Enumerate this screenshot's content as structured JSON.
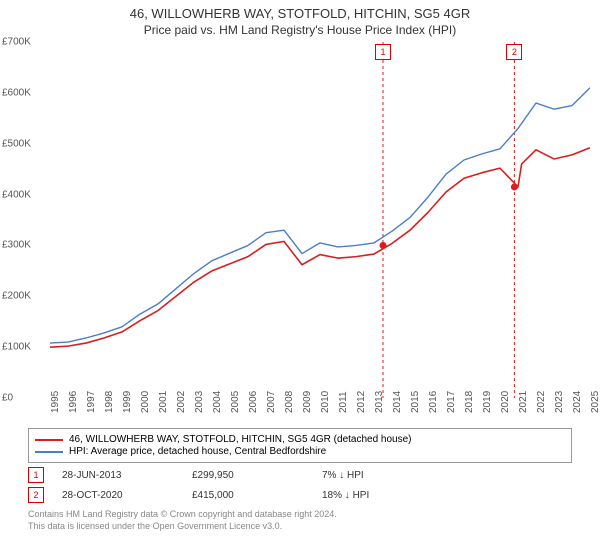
{
  "title": "46, WILLOWHERB WAY, STOTFOLD, HITCHIN, SG5 4GR",
  "subtitle": "Price paid vs. HM Land Registry's House Price Index (HPI)",
  "chart": {
    "type": "line",
    "ylabel_prefix": "£",
    "ylabel_suffix": "K",
    "ylim": [
      0,
      700
    ],
    "ytick_step": 100,
    "yticks": [
      "£0",
      "£100K",
      "£200K",
      "£300K",
      "£400K",
      "£500K",
      "£600K",
      "£700K"
    ],
    "xlim": [
      1995,
      2025
    ],
    "xticks": [
      "1995",
      "1996",
      "1997",
      "1998",
      "1999",
      "2000",
      "2001",
      "2002",
      "2003",
      "2004",
      "2005",
      "2006",
      "2007",
      "2008",
      "2009",
      "2010",
      "2011",
      "2012",
      "2013",
      "2014",
      "2015",
      "2016",
      "2017",
      "2018",
      "2019",
      "2020",
      "2021",
      "2022",
      "2023",
      "2024",
      "2025"
    ],
    "background_color": "#ffffff",
    "grid": false,
    "series": [
      {
        "name": "hpi",
        "label": "HPI: Average price, detached house, Central Bedfordshire",
        "color": "#4a7ec8",
        "width": 1.4,
        "points": [
          [
            1995,
            108
          ],
          [
            1996,
            110
          ],
          [
            1997,
            118
          ],
          [
            1998,
            128
          ],
          [
            1999,
            140
          ],
          [
            2000,
            165
          ],
          [
            2001,
            185
          ],
          [
            2002,
            215
          ],
          [
            2003,
            245
          ],
          [
            2004,
            270
          ],
          [
            2005,
            285
          ],
          [
            2006,
            300
          ],
          [
            2007,
            325
          ],
          [
            2008,
            330
          ],
          [
            2009,
            284
          ],
          [
            2010,
            305
          ],
          [
            2011,
            297
          ],
          [
            2012,
            300
          ],
          [
            2013,
            305
          ],
          [
            2014,
            328
          ],
          [
            2015,
            355
          ],
          [
            2016,
            395
          ],
          [
            2017,
            440
          ],
          [
            2018,
            468
          ],
          [
            2019,
            480
          ],
          [
            2020,
            490
          ],
          [
            2021,
            530
          ],
          [
            2022,
            580
          ],
          [
            2023,
            568
          ],
          [
            2024,
            575
          ],
          [
            2025,
            610
          ]
        ]
      },
      {
        "name": "price",
        "label": "46, WILLOWHERB WAY, STOTFOLD, HITCHIN, SG5 4GR (detached house)",
        "color": "#d81e1e",
        "width": 1.6,
        "points": [
          [
            1995,
            100
          ],
          [
            1996,
            102
          ],
          [
            1997,
            108
          ],
          [
            1998,
            118
          ],
          [
            1999,
            130
          ],
          [
            2000,
            152
          ],
          [
            2001,
            172
          ],
          [
            2002,
            200
          ],
          [
            2003,
            228
          ],
          [
            2004,
            250
          ],
          [
            2005,
            264
          ],
          [
            2006,
            278
          ],
          [
            2007,
            302
          ],
          [
            2008,
            308
          ],
          [
            2009,
            262
          ],
          [
            2010,
            282
          ],
          [
            2011,
            275
          ],
          [
            2012,
            278
          ],
          [
            2013,
            283
          ],
          [
            2014,
            304
          ],
          [
            2015,
            330
          ],
          [
            2016,
            365
          ],
          [
            2017,
            405
          ],
          [
            2018,
            432
          ],
          [
            2019,
            443
          ],
          [
            2020,
            452
          ],
          [
            2021,
            415
          ],
          [
            2021.2,
            460
          ],
          [
            2022,
            488
          ],
          [
            2023,
            470
          ],
          [
            2024,
            478
          ],
          [
            2025,
            492
          ]
        ]
      }
    ],
    "sale_markers": [
      {
        "num": "1",
        "x": 2013.5,
        "y": 300,
        "dashed_color": "#d81e1e"
      },
      {
        "num": "2",
        "x": 2020.8,
        "y": 415,
        "dashed_color": "#d81e1e"
      }
    ]
  },
  "legend": {
    "items": [
      {
        "color": "#d81e1e",
        "label": "46, WILLOWHERB WAY, STOTFOLD, HITCHIN, SG5 4GR (detached house)"
      },
      {
        "color": "#4a7ec8",
        "label": "HPI: Average price, detached house, Central Bedfordshire"
      }
    ]
  },
  "sales": [
    {
      "num": "1",
      "date": "28-JUN-2013",
      "price": "£299,950",
      "change": "7% ↓ HPI"
    },
    {
      "num": "2",
      "date": "28-OCT-2020",
      "price": "£415,000",
      "change": "18% ↓ HPI"
    }
  ],
  "footer": {
    "line1": "Contains HM Land Registry data © Crown copyright and database right 2024.",
    "line2": "This data is licensed under the Open Government Licence v3.0."
  }
}
